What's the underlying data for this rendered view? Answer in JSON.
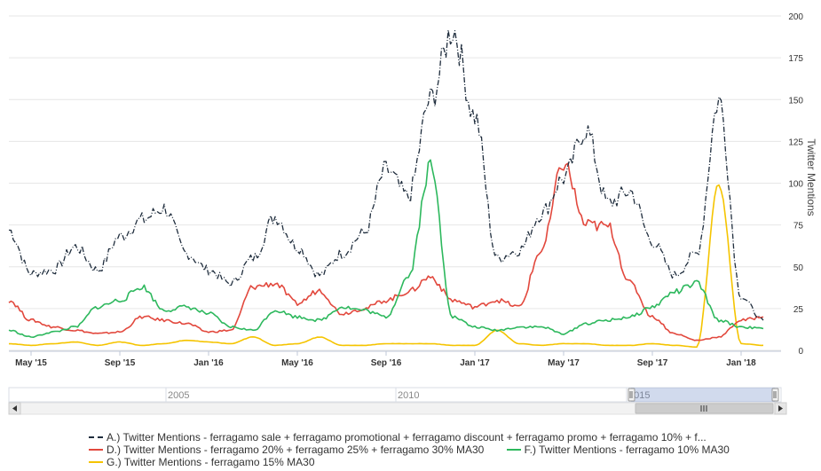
{
  "chart_data": {
    "type": "line",
    "title": "",
    "ylabel": "Twitter Mentions",
    "ylim": [
      0,
      200
    ],
    "yticks": [
      "0",
      "25",
      "50",
      "75",
      "100",
      "125",
      "150",
      "175",
      "200"
    ],
    "xticks": [
      "May '15",
      "Sep '15",
      "Jan '16",
      "May '16",
      "Sep '16",
      "Jan '17",
      "May '17",
      "Sep '17",
      "Jan '18"
    ],
    "x_start": "2015-04",
    "x_end": "2018-02",
    "navigator": {
      "labels": [
        "2005",
        "2010",
        "2015"
      ]
    },
    "x": [
      "Apr'15",
      "May'15",
      "Jun'15",
      "Jul'15",
      "Aug'15",
      "Sep'15",
      "Oct'15",
      "Nov'15",
      "Dec'15",
      "Jan'16",
      "Feb'16",
      "Mar'16",
      "Apr'16",
      "May'16",
      "Jun'16",
      "Jul'16",
      "Aug'16",
      "Sep'16",
      "Oct'16",
      "Nov'16",
      "Dec'16",
      "Jan'17",
      "Feb'17",
      "Mar'17",
      "Apr'17",
      "May'17",
      "Jun'17",
      "Jul'17",
      "Aug'17",
      "Sep'17",
      "Oct'17",
      "Nov'17",
      "Dec'17",
      "Jan'18",
      "Feb'18"
    ],
    "series": [
      {
        "name": "A.) Twitter Mentions - ferragamo sale + ferragamo promotional + ferragamo discount + ferragamo promo + ferragamo 10% + f...",
        "color": "#1f2d3d",
        "dash": "6,2,1,2",
        "values": [
          72,
          46,
          48,
          62,
          48,
          68,
          78,
          85,
          58,
          48,
          40,
          55,
          80,
          62,
          45,
          58,
          70,
          108,
          92,
          150,
          192,
          140,
          55,
          60,
          82,
          103,
          132,
          88,
          95,
          65,
          45,
          58,
          150,
          32,
          18
        ]
      },
      {
        "name": "D.) Twitter Mentions - ferragamo 20% + ferragamo 25% + ferragamo 30% MA30",
        "color": "#e2483d",
        "dash": "",
        "values": [
          30,
          18,
          14,
          12,
          10,
          11,
          20,
          18,
          16,
          11,
          12,
          38,
          40,
          28,
          36,
          22,
          25,
          30,
          35,
          44,
          30,
          26,
          30,
          26,
          60,
          112,
          75,
          74,
          40,
          20,
          10,
          6,
          8,
          18,
          20
        ]
      },
      {
        "name": "F.) Twitter Mentions - ferragamo 10% MA30",
        "color": "#2db85d",
        "dash": "",
        "values": [
          12,
          8,
          11,
          14,
          26,
          30,
          38,
          24,
          26,
          22,
          14,
          12,
          24,
          20,
          18,
          26,
          24,
          20,
          44,
          110,
          20,
          14,
          12,
          14,
          14,
          10,
          16,
          18,
          20,
          26,
          35,
          40,
          18,
          14,
          13
        ]
      },
      {
        "name": "G.) Twitter Mentions - ferragamo 15% MA30",
        "color": "#f5c400",
        "dash": "",
        "values": [
          4,
          3,
          4,
          5,
          3,
          5,
          3,
          4,
          6,
          5,
          4,
          8,
          3,
          4,
          8,
          3,
          3,
          4,
          4,
          4,
          3,
          3,
          12,
          4,
          3,
          4,
          4,
          3,
          3,
          4,
          3,
          2,
          100,
          4,
          3
        ]
      }
    ]
  }
}
